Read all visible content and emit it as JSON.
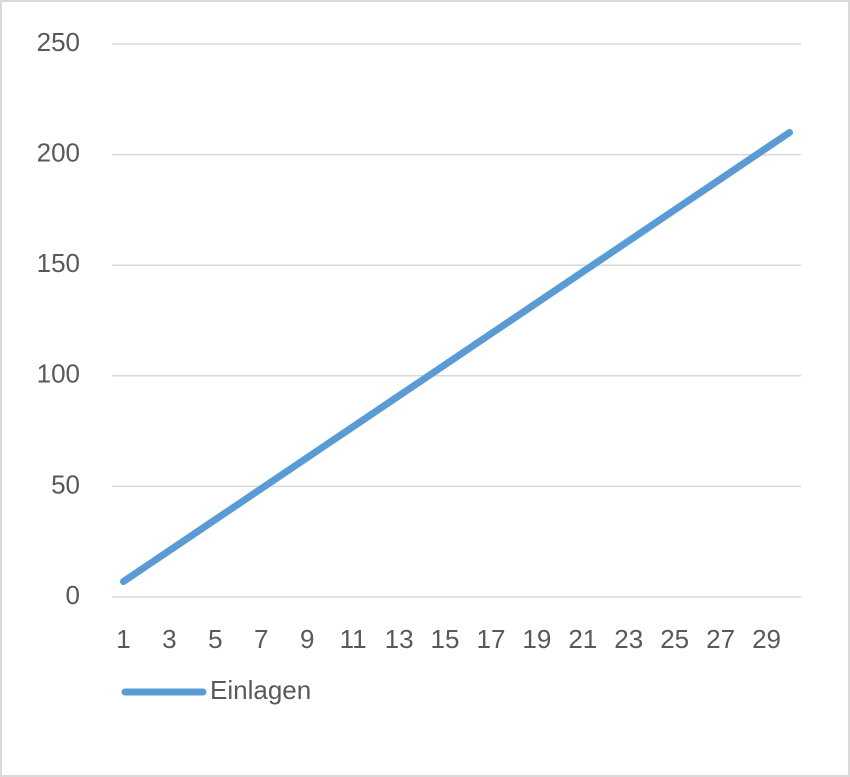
{
  "chart_data": {
    "type": "line",
    "categories": [
      "1",
      null,
      "3",
      null,
      "5",
      null,
      "7",
      null,
      "9",
      null,
      "11",
      null,
      "13",
      null,
      "15",
      null,
      "17",
      null,
      "19",
      null,
      "21",
      null,
      "23",
      null,
      "25",
      null,
      "27",
      null,
      "29",
      null
    ],
    "series": [
      {
        "name": "Einlagen",
        "color": "#5b9bd5",
        "values": [
          7,
          14,
          21,
          28,
          35,
          42,
          49,
          56,
          63,
          70,
          77,
          84,
          91,
          98,
          105,
          112,
          119,
          126,
          133,
          140,
          147,
          154,
          161,
          168,
          175,
          182,
          189,
          196,
          203,
          210
        ]
      }
    ],
    "ylim": [
      0,
      250
    ],
    "yticks": [
      0,
      50,
      100,
      150,
      200,
      250
    ],
    "grid": true,
    "legend": "bottom-left"
  }
}
